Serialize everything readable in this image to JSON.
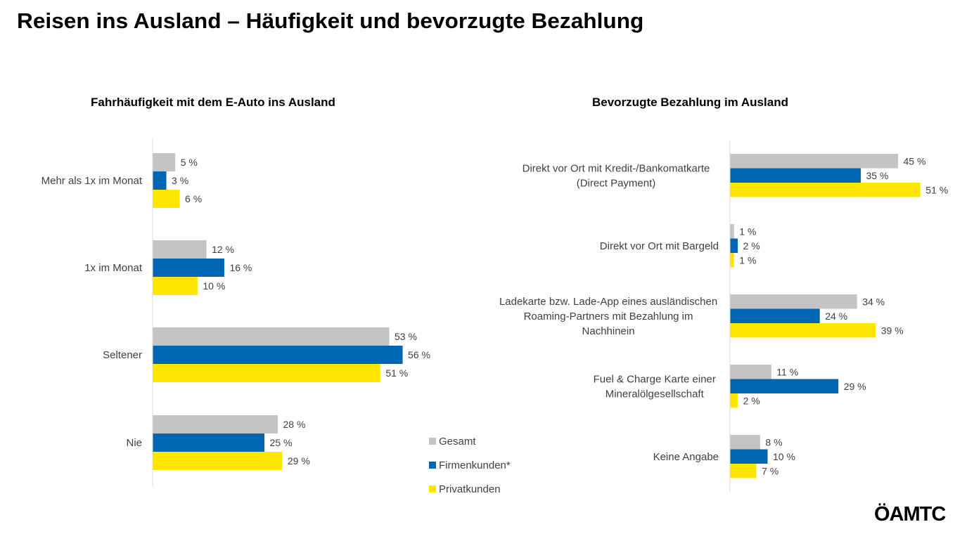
{
  "title": "Reisen ins Ausland – Häufigkeit und bevorzugte Bezahlung",
  "logo_text": "ÖAMTC",
  "colors": {
    "Gesamt": "#c4c4c4",
    "Firmenkunden": "#0066b3",
    "Privatkunden": "#ffe600",
    "axis": "#d9d9d9"
  },
  "legend": [
    {
      "label": "Gesamt",
      "color_key": "Gesamt"
    },
    {
      "label": "Firmenkunden*",
      "color_key": "Firmenkunden"
    },
    {
      "label": "Privatkunden",
      "color_key": "Privatkunden"
    }
  ],
  "chart_data": [
    {
      "type": "bar",
      "orientation": "horizontal",
      "title": "Fahrhäufigkeit mit dem E-Auto ins Ausland",
      "xlabel": "",
      "ylabel": "",
      "unit": "%",
      "xlim": [
        0,
        60
      ],
      "grid": false,
      "legend": "right",
      "categories": [
        "Mehr als 1x im Monat",
        "1x im Monat",
        "Seltener",
        "Nie"
      ],
      "category_lines": [
        [
          "Mehr als 1x im Monat"
        ],
        [
          "1x im Monat"
        ],
        [
          "Seltener"
        ],
        [
          "Nie"
        ]
      ],
      "series": [
        {
          "name": "Gesamt",
          "values": [
            5,
            12,
            53,
            28
          ]
        },
        {
          "name": "Firmenkunden*",
          "values": [
            3,
            16,
            56,
            25
          ]
        },
        {
          "name": "Privatkunden",
          "values": [
            6,
            10,
            51,
            29
          ]
        }
      ]
    },
    {
      "type": "bar",
      "orientation": "horizontal",
      "title": "Bevorzugte Bezahlung im Ausland",
      "xlabel": "",
      "ylabel": "",
      "unit": "%",
      "xlim": [
        0,
        60
      ],
      "grid": false,
      "legend": "left",
      "categories": [
        "Direkt vor Ort mit Kredit-/Bankomatkarte (Direct Payment)",
        "Direkt vor Ort mit Bargeld",
        "Ladekarte bzw. Lade-App eines ausländischen Roaming-Partners mit Bezahlung im Nachhinein",
        "Fuel & Charge Karte einer Mineralölgesellschaft",
        "Keine Angabe"
      ],
      "category_lines": [
        [
          "Direkt vor Ort mit Kredit-/Bankomatkarte",
          "(Direct Payment)"
        ],
        [
          "Direkt vor Ort mit Bargeld"
        ],
        [
          "Ladekarte bzw. Lade-App eines ausländischen",
          "Roaming-Partners mit Bezahlung im",
          "Nachhinein"
        ],
        [
          "Fuel & Charge Karte einer",
          "Mineralölgesellschaft"
        ],
        [
          "Keine Angabe"
        ]
      ],
      "series": [
        {
          "name": "Gesamt",
          "values": [
            45,
            1,
            34,
            11,
            8
          ]
        },
        {
          "name": "Firmenkunden*",
          "values": [
            35,
            2,
            24,
            29,
            10
          ]
        },
        {
          "name": "Privatkunden",
          "values": [
            51,
            1,
            39,
            2,
            7
          ]
        }
      ]
    }
  ]
}
